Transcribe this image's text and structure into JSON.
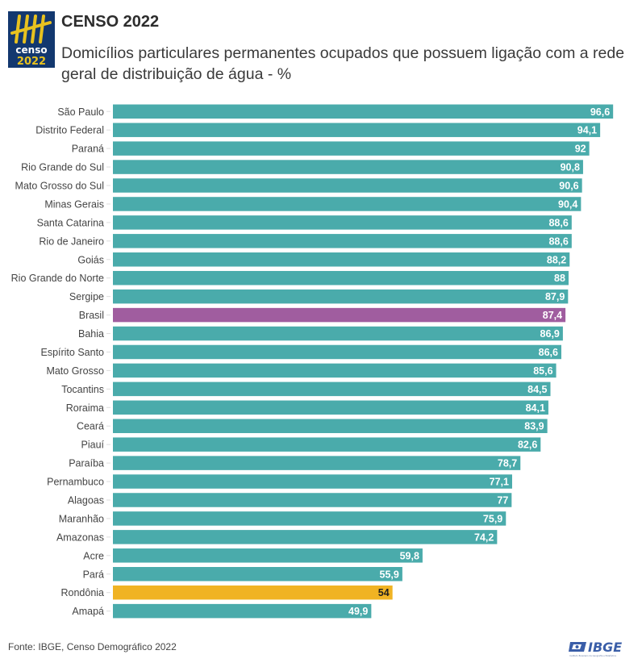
{
  "header": {
    "title": "CENSO 2022",
    "subtitle": "Domicílios particulares permanentes ocupados que possuem ligação com a rede geral de distribuição de água - %",
    "logo": {
      "word": "censo",
      "year": "2022"
    }
  },
  "footer": {
    "source": "Fonte: IBGE, Censo Demográfico 2022",
    "brand": "IBGE",
    "brand_tagline": "Instituto Brasileiro de Geografia e Estatística"
  },
  "colors": {
    "default": "#4aabab",
    "highlight_national": "#a05d9f",
    "highlight_state": "#f0b323",
    "logo_blue": "#13386f",
    "logo_yellow": "#e8c21f",
    "ibge_blue": "#3a5ea8"
  },
  "chart_data": {
    "type": "bar",
    "orientation": "horizontal",
    "title": "CENSO 2022",
    "subtitle": "Domicílios particulares permanentes ocupados que possuem ligação com a rede geral de distribuição de água - %",
    "xlabel": "",
    "ylabel": "",
    "xlim": [
      0,
      100
    ],
    "grid": false,
    "legend": "none",
    "categories": [
      "São Paulo",
      "Distrito Federal",
      "Paraná",
      "Rio Grande do Sul",
      "Mato Grosso do Sul",
      "Minas Gerais",
      "Santa Catarina",
      "Rio de Janeiro",
      "Goiás",
      "Rio Grande do Norte",
      "Sergipe",
      "Brasil",
      "Bahia",
      "Espírito Santo",
      "Mato Grosso",
      "Tocantins",
      "Roraima",
      "Ceará",
      "Piauí",
      "Paraíba",
      "Pernambuco",
      "Alagoas",
      "Maranhão",
      "Amazonas",
      "Acre",
      "Pará",
      "Rondônia",
      "Amapá"
    ],
    "values": [
      96.6,
      94.1,
      92,
      90.8,
      90.6,
      90.4,
      88.6,
      88.6,
      88.2,
      88,
      87.9,
      87.4,
      86.9,
      86.6,
      85.6,
      84.5,
      84.1,
      83.9,
      82.6,
      78.7,
      77.1,
      77,
      75.9,
      74.2,
      59.8,
      55.9,
      54,
      49.9
    ],
    "value_labels": [
      "96,6",
      "94,1",
      "92",
      "90,8",
      "90,6",
      "90,4",
      "88,6",
      "88,6",
      "88,2",
      "88",
      "87,9",
      "87,4",
      "86,9",
      "86,6",
      "85,6",
      "84,5",
      "84,1",
      "83,9",
      "82,6",
      "78,7",
      "77,1",
      "77",
      "75,9",
      "74,2",
      "59,8",
      "55,9",
      "54",
      "49,9"
    ],
    "highlights": {
      "Brasil": "highlight_national",
      "Rondônia": "highlight_state"
    },
    "source": "Fonte: IBGE, Censo Demográfico 2022"
  }
}
